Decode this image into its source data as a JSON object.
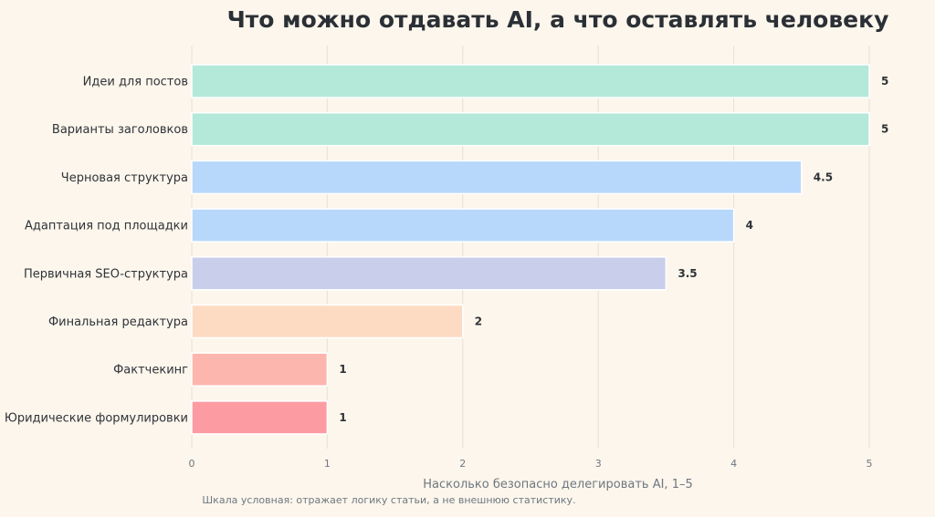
{
  "chart_data": {
    "type": "bar",
    "orientation": "horizontal",
    "title": "Что можно отдавать AI, а что оставлять человеку",
    "xlabel": "Насколько безопасно делегировать AI, 1–5",
    "ylabel": "",
    "note": "Шкала условная: отражает логику статьи, а не внешнюю статистику.",
    "xlim": [
      0,
      5
    ],
    "xticks": [
      "0",
      "1",
      "2",
      "3",
      "4",
      "5"
    ],
    "grid": true,
    "categories": [
      "Идеи для постов",
      "Варианты заголовков",
      "Черновая структура",
      "Адаптация под площадки",
      "Первичная SEO-структура",
      "Финальная редактура",
      "Фактчекинг",
      "Юридические формулировки"
    ],
    "values": [
      5,
      5,
      4.5,
      4,
      3.5,
      2,
      1,
      1
    ],
    "value_labels": [
      "5",
      "5",
      "4.5",
      "4",
      "3.5",
      "2",
      "1",
      "1"
    ],
    "colors": [
      "#b4e9d9",
      "#b4e9d9",
      "#b8d8fb",
      "#b8d8fb",
      "#c9cfea",
      "#fddbc3",
      "#fdb6ae",
      "#fd9ba3"
    ]
  }
}
